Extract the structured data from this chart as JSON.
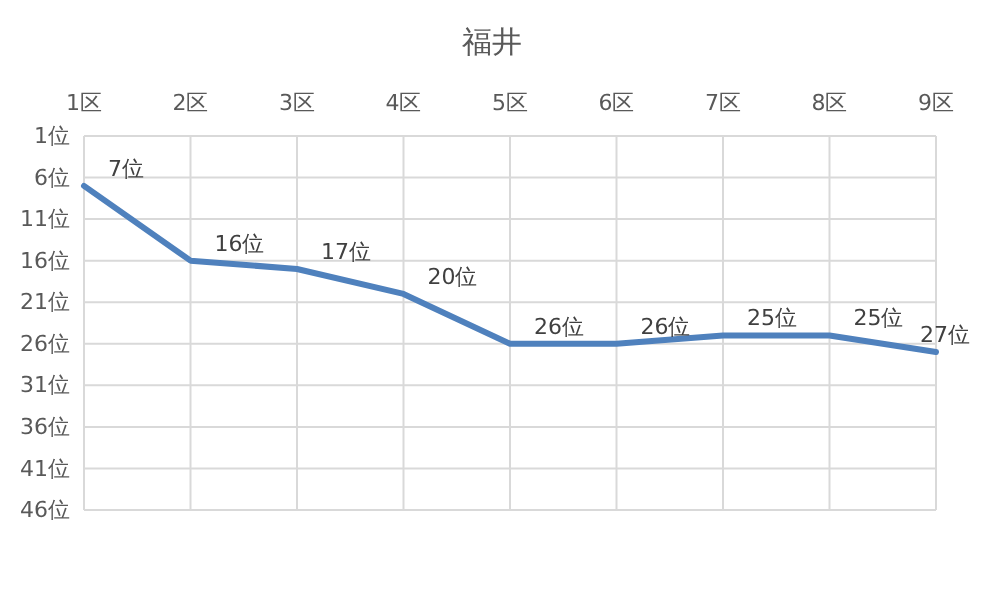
{
  "chart_data": {
    "type": "line",
    "title": "福井",
    "categories": [
      "1区",
      "2区",
      "3区",
      "4区",
      "5区",
      "6区",
      "7区",
      "8区",
      "9区"
    ],
    "series": [
      {
        "color": "#4f81bd",
        "values": [
          7,
          16,
          17,
          20,
          26,
          26,
          25,
          25,
          27
        ],
        "value_labels": [
          "7位",
          "16位",
          "17位",
          "20位",
          "26位",
          "26位",
          "25位",
          "25位",
          "27位"
        ]
      }
    ],
    "ylim": [
      46,
      1
    ],
    "yticks": [
      {
        "value": 1,
        "label": "1位"
      },
      {
        "value": 6,
        "label": "6位"
      },
      {
        "value": 11,
        "label": "11位"
      },
      {
        "value": 16,
        "label": "16位"
      },
      {
        "value": 21,
        "label": "21位"
      },
      {
        "value": 26,
        "label": "26位"
      },
      {
        "value": 31,
        "label": "31位"
      },
      {
        "value": 36,
        "label": "36位"
      },
      {
        "value": 41,
        "label": "41位"
      },
      {
        "value": 46,
        "label": "46位"
      }
    ],
    "grid": true,
    "marker": "none",
    "line_style": "solid"
  }
}
